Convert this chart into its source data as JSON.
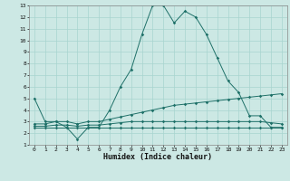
{
  "xlabel": "Humidex (Indice chaleur)",
  "background_color": "#cce8e4",
  "grid_color": "#a8d4cf",
  "line_color": "#1e7068",
  "xlim": [
    -0.5,
    23.5
  ],
  "ylim": [
    1,
    13
  ],
  "xticks": [
    0,
    1,
    2,
    3,
    4,
    5,
    6,
    7,
    8,
    9,
    10,
    11,
    12,
    13,
    14,
    15,
    16,
    17,
    18,
    19,
    20,
    21,
    22,
    23
  ],
  "yticks": [
    1,
    2,
    3,
    4,
    5,
    6,
    7,
    8,
    9,
    10,
    11,
    12,
    13
  ],
  "line1_x": [
    0,
    1,
    2,
    3,
    4,
    5,
    6,
    7,
    8,
    9,
    10,
    11,
    12,
    13,
    14,
    15,
    16,
    17,
    18,
    19,
    20,
    21,
    22,
    23
  ],
  "line1_y": [
    5,
    3,
    3,
    2.5,
    1.5,
    2.5,
    2.5,
    4,
    6,
    7.5,
    10.5,
    13,
    13,
    11.5,
    12.5,
    12,
    10.5,
    8.5,
    6.5,
    5.5,
    3.5,
    3.5,
    2.5,
    2.5
  ],
  "line2_x": [
    0,
    1,
    2,
    3,
    4,
    5,
    6,
    7,
    8,
    9,
    10,
    11,
    12,
    13,
    14,
    15,
    16,
    17,
    18,
    19,
    20,
    21,
    22,
    23
  ],
  "line2_y": [
    2.8,
    2.8,
    3.0,
    3.0,
    2.8,
    3.0,
    3.0,
    3.2,
    3.4,
    3.6,
    3.8,
    4.0,
    4.2,
    4.4,
    4.5,
    4.6,
    4.7,
    4.8,
    4.9,
    5.0,
    5.1,
    5.2,
    5.3,
    5.4
  ],
  "line3_x": [
    0,
    1,
    2,
    3,
    4,
    5,
    6,
    7,
    8,
    9,
    10,
    11,
    12,
    13,
    14,
    15,
    16,
    17,
    18,
    19,
    20,
    21,
    22,
    23
  ],
  "line3_y": [
    2.6,
    2.6,
    2.7,
    2.7,
    2.6,
    2.7,
    2.7,
    2.8,
    2.9,
    3.0,
    3.0,
    3.0,
    3.0,
    3.0,
    3.0,
    3.0,
    3.0,
    3.0,
    3.0,
    3.0,
    3.0,
    3.0,
    2.9,
    2.8
  ],
  "line4_x": [
    0,
    1,
    2,
    3,
    4,
    5,
    6,
    7,
    8,
    9,
    10,
    11,
    12,
    13,
    14,
    15,
    16,
    17,
    18,
    19,
    20,
    21,
    22,
    23
  ],
  "line4_y": [
    2.5,
    2.5,
    2.5,
    2.5,
    2.5,
    2.5,
    2.5,
    2.5,
    2.5,
    2.5,
    2.5,
    2.5,
    2.5,
    2.5,
    2.5,
    2.5,
    2.5,
    2.5,
    2.5,
    2.5,
    2.5,
    2.5,
    2.5,
    2.5
  ]
}
